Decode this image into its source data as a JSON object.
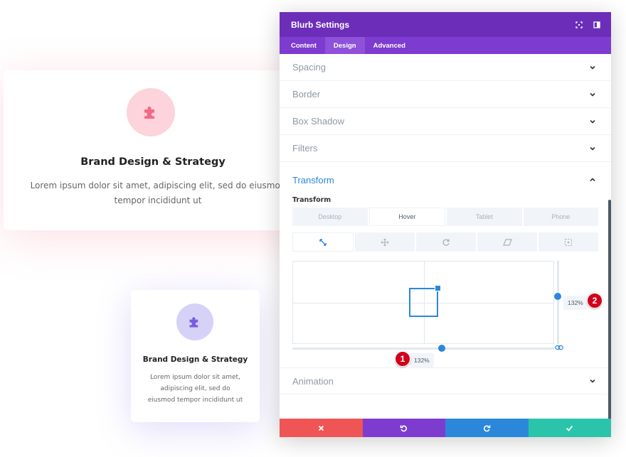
{
  "background_cards": [
    {
      "title": "Brand Design & Strategy",
      "text": "Lorem ipsum dolor sit amet, adipiscing elit, sed do eiusmod tempor incididunt ut",
      "icon": "puzzle-icon",
      "icon_color": "#f26a86"
    },
    {
      "title": "Brand Design & Strategy",
      "text": "Lorem ipsum dolor sit amet, adipiscing elit, sed do eiusmod tempor incididunt ut",
      "icon": "puzzle-icon",
      "icon_color": "#7b5ce0"
    }
  ],
  "modal": {
    "title": "Blurb Settings",
    "tabs": [
      "Content",
      "Design",
      "Advanced"
    ],
    "active_tab": "Design",
    "sections_top": [
      "Spacing",
      "Border",
      "Box Shadow",
      "Filters"
    ],
    "transform": {
      "label": "Transform",
      "sub_label": "Transform",
      "device_tabs": [
        "Desktop",
        "Hover",
        "Tablet",
        "Phone"
      ],
      "active_device": "Hover",
      "tools": [
        "scale-icon",
        "move-icon",
        "rotate-icon",
        "skew-icon",
        "origin-icon"
      ],
      "active_tool": "scale-icon",
      "scale_x": "132%",
      "scale_y": "132%",
      "scale_x_level": 0.57,
      "scale_y_level": 0.43
    },
    "sections_bottom": [
      "Animation"
    ]
  },
  "markers": [
    "1",
    "2"
  ],
  "colors": {
    "header": "#6c2eb9",
    "tabs": "#7e3bd0",
    "accent": "#2b87da",
    "cancel": "#ef5555",
    "undo": "#7e3bd0",
    "redo": "#2b87da",
    "save": "#29c4a9"
  }
}
